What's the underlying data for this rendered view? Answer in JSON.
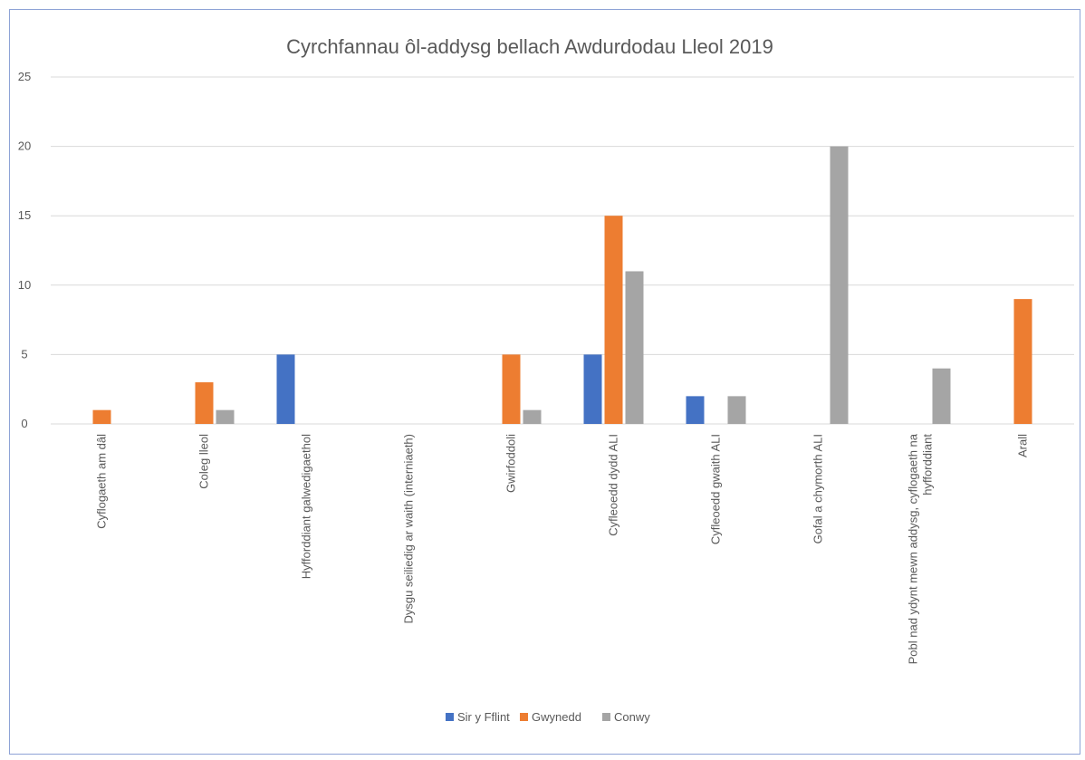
{
  "chart_data": {
    "type": "bar",
    "title": "Cyrchfannau ôl-addysg bellach Awdurdodau Lleol 2019",
    "xlabel": "",
    "ylabel": "",
    "ylim": [
      0,
      25
    ],
    "yticks": [
      0,
      5,
      10,
      15,
      20,
      25
    ],
    "grid": true,
    "legend_position": "bottom",
    "categories": [
      [
        "Cyflogaeth am dâl"
      ],
      [
        "Coleg lleol"
      ],
      [
        "Hyfforddiant galwedigaethol"
      ],
      [
        "Dysgu seiliedig ar waith (interniaeth)"
      ],
      [
        "Gwirfoddoli"
      ],
      [
        "Cyfleoedd dydd ALI"
      ],
      [
        "Cyfleoedd gwaith ALI"
      ],
      [
        "Gofal a chymorth ALI"
      ],
      [
        "Pobl nad ydynt mewn addysg, cyflogaeth na",
        "hyfforddiant"
      ],
      [
        "Arall"
      ]
    ],
    "series": [
      {
        "name": "Sir y Fflint",
        "color": "#4472c4",
        "values": [
          0,
          0,
          5,
          0,
          0,
          5,
          2,
          0,
          0,
          0
        ]
      },
      {
        "name": "Gwynedd",
        "color": "#ed7d31",
        "values": [
          1,
          3,
          0,
          0,
          5,
          15,
          0,
          0,
          0,
          9
        ]
      },
      {
        "name": "Conwy",
        "color": "#a5a5a5",
        "values": [
          0,
          1,
          0,
          0,
          1,
          11,
          2,
          20,
          4,
          0
        ]
      }
    ]
  }
}
